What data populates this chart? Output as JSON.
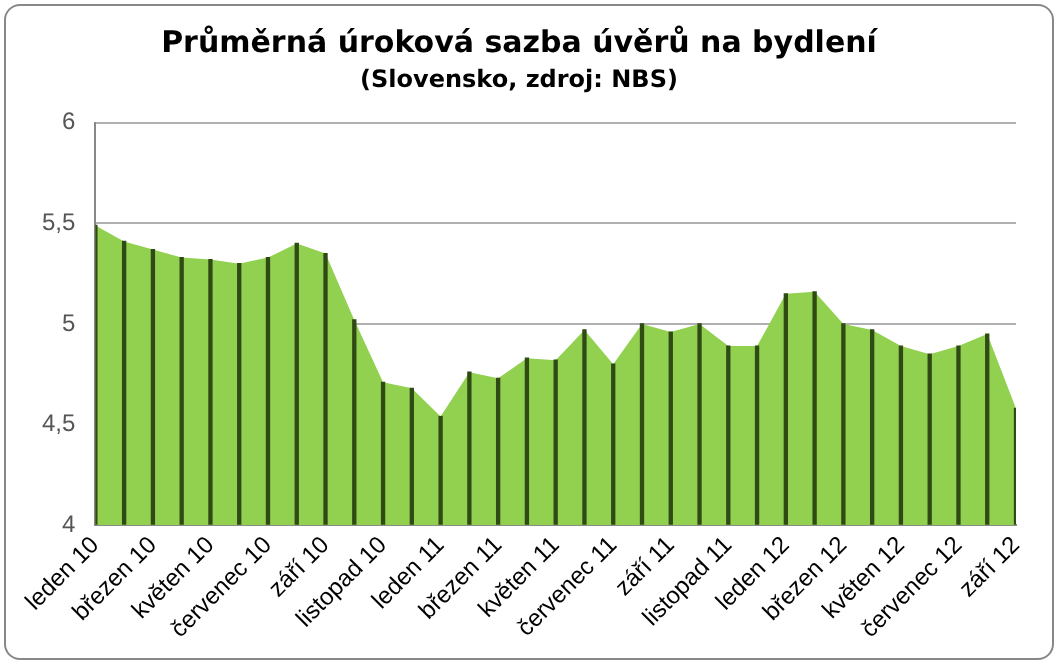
{
  "chart_data": {
    "type": "area",
    "title": "Průměrná úroková sazba úvěrů na bydlení",
    "subtitle": "(Slovensko, zdroj: NBS)",
    "categories": [
      "leden 10",
      null,
      "březen 10",
      null,
      "květen 10",
      null,
      "červenec 10",
      null,
      "září 10",
      null,
      "listopad 10",
      null,
      "leden 11",
      null,
      "březen 11",
      null,
      "květen 11",
      null,
      "červenec 11",
      null,
      "září 11",
      null,
      "listopad 11",
      null,
      "leden 12",
      null,
      "březen 12",
      null,
      "květen 12",
      null,
      "červenec 12",
      null,
      "září 12"
    ],
    "series": [
      {
        "color": "#92d050",
        "values": [
          5.49,
          5.41,
          5.37,
          5.33,
          5.32,
          5.3,
          5.33,
          5.4,
          5.35,
          5.02,
          4.71,
          4.68,
          4.54,
          4.76,
          4.73,
          4.83,
          4.82,
          4.97,
          4.8,
          5.0,
          4.96,
          5.0,
          4.89,
          4.89,
          5.15,
          5.16,
          5.0,
          4.97,
          4.89,
          4.85,
          4.89,
          4.95,
          4.58
        ]
      },
      {
        "type": "bar",
        "color": "#2f4a14",
        "values": [
          5.49,
          5.41,
          5.37,
          5.33,
          5.32,
          5.3,
          5.33,
          5.4,
          5.35,
          5.02,
          4.71,
          4.68,
          4.54,
          4.76,
          4.73,
          4.83,
          4.82,
          4.97,
          4.8,
          5.0,
          4.96,
          5.0,
          4.89,
          4.89,
          5.15,
          5.16,
          5.0,
          4.97,
          4.89,
          4.85,
          4.89,
          4.95,
          4.58
        ]
      }
    ],
    "ylim": [
      4,
      6
    ],
    "yticks": [
      4,
      {
        "value": 4.5,
        "label": "4,5"
      },
      5,
      {
        "value": 5.5,
        "label": "5,5"
      },
      6
    ],
    "grid": "y",
    "legend": false,
    "marker": "none"
  }
}
